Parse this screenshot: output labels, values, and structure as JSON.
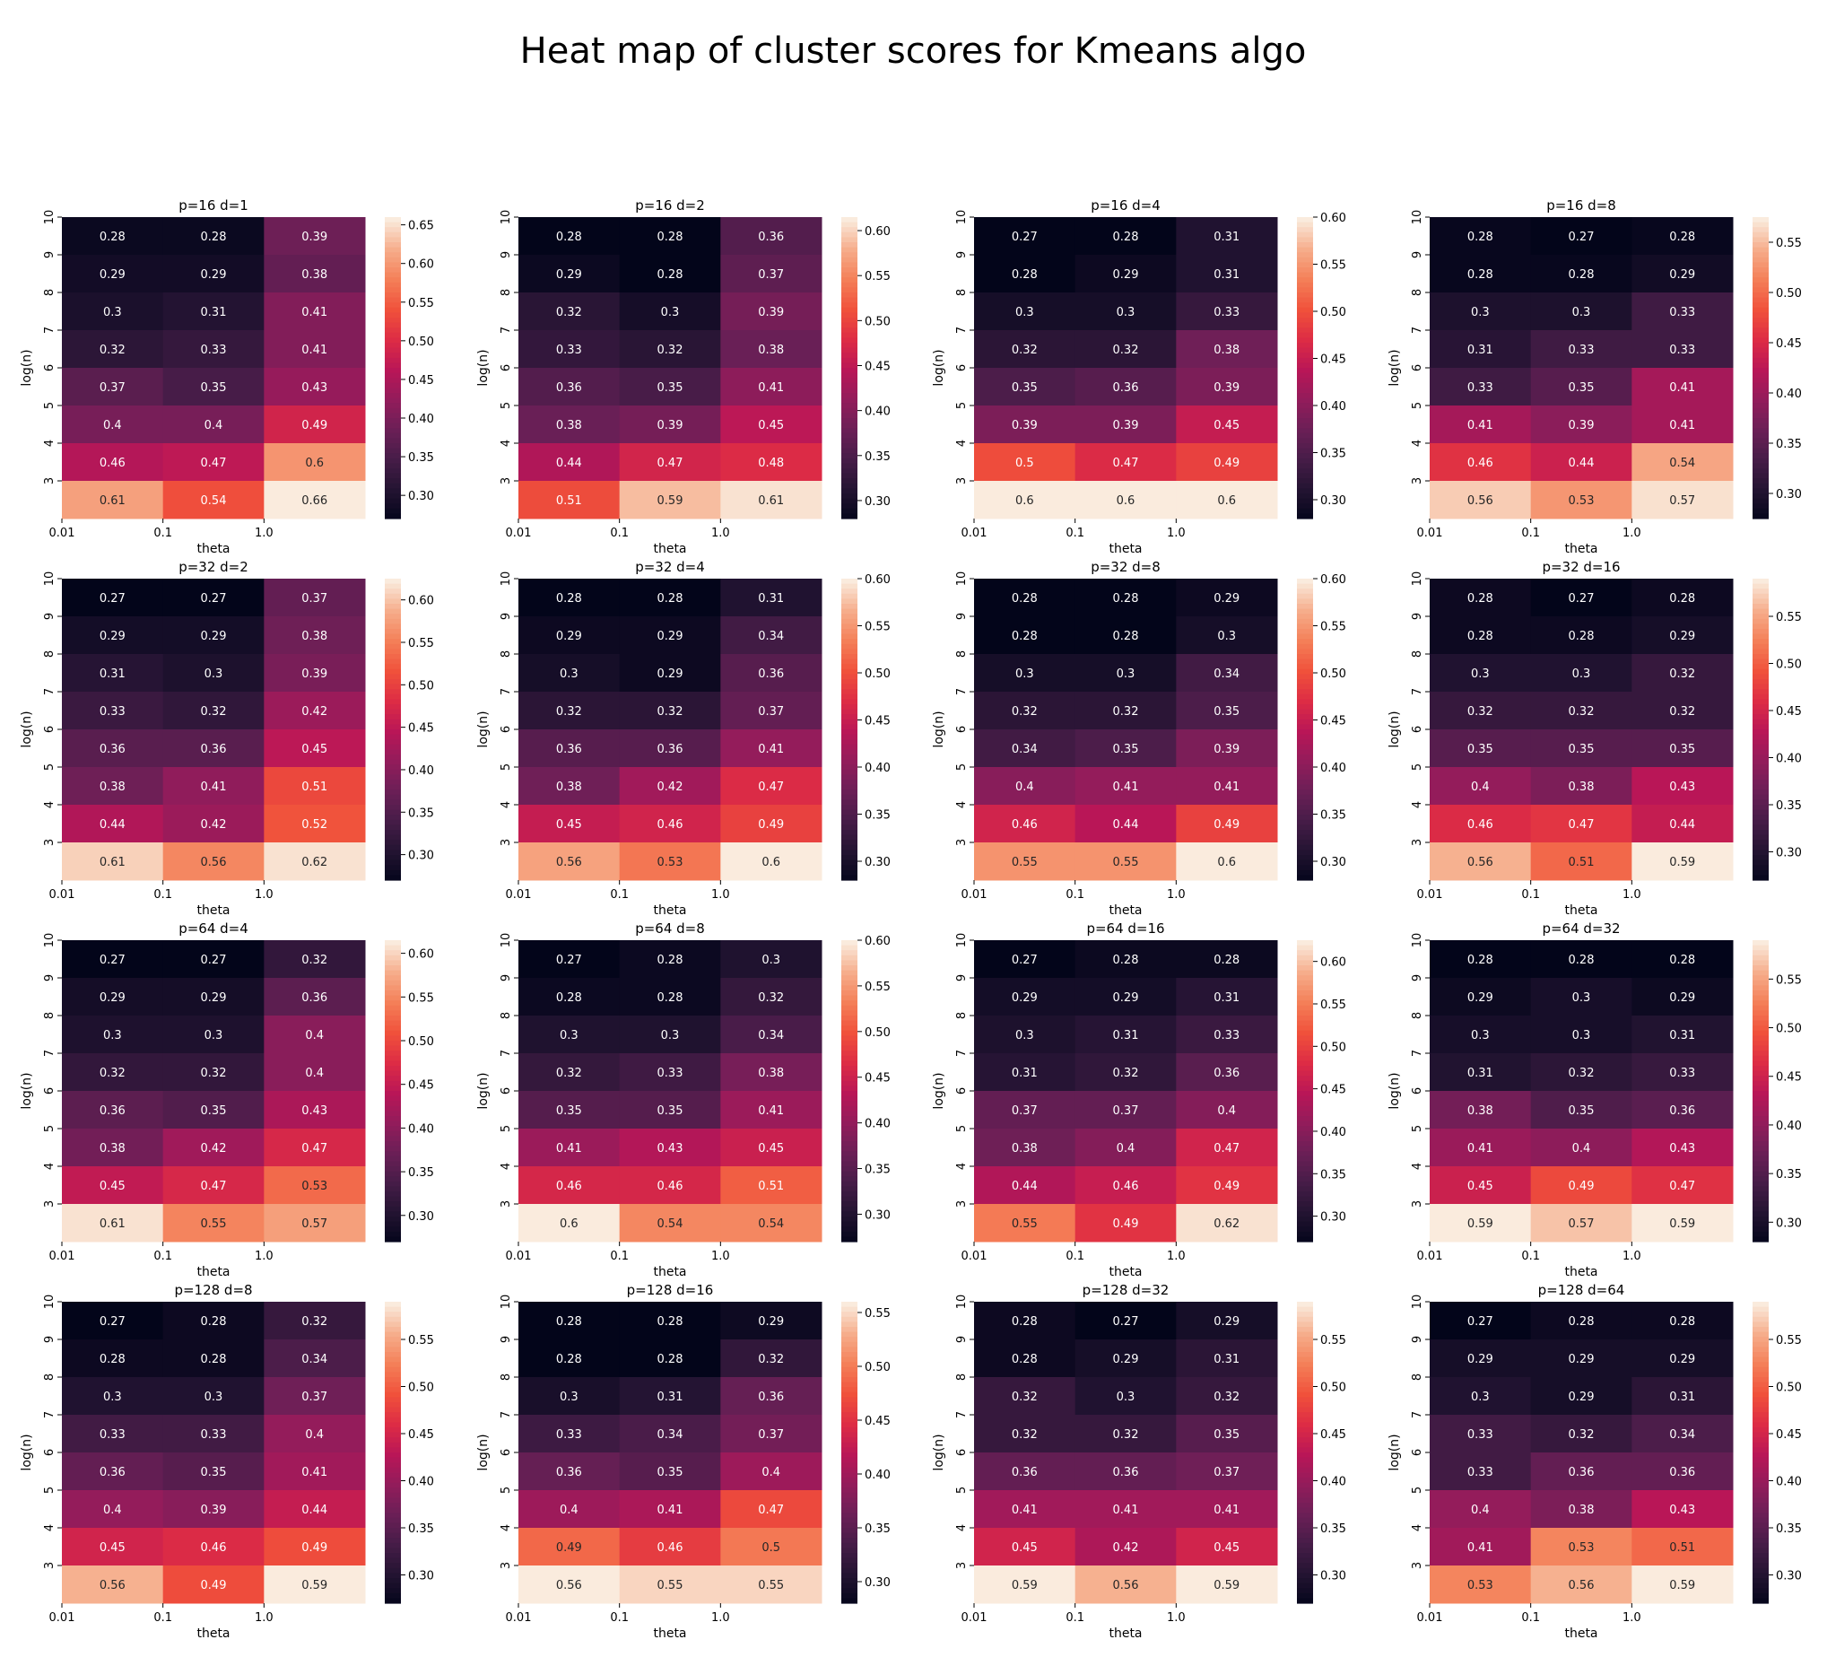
{
  "figure": {
    "title": "Heat map of cluster scores for Kmeans algo"
  },
  "colormap": {
    "name": "rocket",
    "stops": [
      [
        0.0,
        "#03051a"
      ],
      [
        0.1,
        "#221331"
      ],
      [
        0.2,
        "#451c47"
      ],
      [
        0.3,
        "#6a1f56"
      ],
      [
        0.4,
        "#921c5b"
      ],
      [
        0.5,
        "#b91657"
      ],
      [
        0.6,
        "#dd2c45"
      ],
      [
        0.7,
        "#f0513b"
      ],
      [
        0.8,
        "#f47f58"
      ],
      [
        0.9,
        "#f6ad8b"
      ],
      [
        1.0,
        "#faebdd"
      ]
    ]
  },
  "chart_data": [
    {
      "type": "heatmap",
      "title": "p=16 d=1",
      "xlabel": "theta",
      "ylabel": "log(n)",
      "xticklabels": [
        "0.01",
        "0.1",
        "1.0"
      ],
      "yticklabels": [
        "10",
        "9",
        "8",
        "7",
        "6",
        "5",
        "4",
        "3"
      ],
      "values": [
        [
          0.28,
          0.28,
          0.39
        ],
        [
          0.29,
          0.29,
          0.38
        ],
        [
          0.3,
          0.31,
          0.41
        ],
        [
          0.32,
          0.33,
          0.41
        ],
        [
          0.37,
          0.35,
          0.43
        ],
        [
          0.4,
          0.4,
          0.49
        ],
        [
          0.46,
          0.47,
          0.6
        ],
        [
          0.61,
          0.54,
          0.66
        ]
      ],
      "vmin": 0.27,
      "vmax": 0.66,
      "colorbar_ticks": [
        "0.30",
        "0.35",
        "0.40",
        "0.45",
        "0.50",
        "0.55",
        "0.60",
        "0.65"
      ]
    },
    {
      "type": "heatmap",
      "title": "p=16 d=2",
      "xlabel": "theta",
      "ylabel": "log(n)",
      "xticklabels": [
        "0.01",
        "0.1",
        "1.0"
      ],
      "yticklabels": [
        "10",
        "9",
        "8",
        "7",
        "6",
        "5",
        "4",
        "3"
      ],
      "values": [
        [
          0.28,
          0.28,
          0.36
        ],
        [
          0.29,
          0.28,
          0.37
        ],
        [
          0.32,
          0.3,
          0.39
        ],
        [
          0.33,
          0.32,
          0.38
        ],
        [
          0.36,
          0.35,
          0.41
        ],
        [
          0.38,
          0.39,
          0.45
        ],
        [
          0.44,
          0.47,
          0.48
        ],
        [
          0.51,
          0.59,
          0.61
        ]
      ],
      "vmin": 0.28,
      "vmax": 0.615,
      "colorbar_ticks": [
        "0.30",
        "0.35",
        "0.40",
        "0.45",
        "0.50",
        "0.55",
        "0.60"
      ]
    },
    {
      "type": "heatmap",
      "title": "p=16 d=4",
      "xlabel": "theta",
      "ylabel": "log(n)",
      "xticklabels": [
        "0.01",
        "0.1",
        "1.0"
      ],
      "yticklabels": [
        "10",
        "9",
        "8",
        "7",
        "6",
        "5",
        "4",
        "3"
      ],
      "values": [
        [
          0.27,
          0.28,
          0.31
        ],
        [
          0.28,
          0.29,
          0.31
        ],
        [
          0.3,
          0.3,
          0.33
        ],
        [
          0.32,
          0.32,
          0.38
        ],
        [
          0.35,
          0.36,
          0.39
        ],
        [
          0.39,
          0.39,
          0.45
        ],
        [
          0.5,
          0.47,
          0.49
        ],
        [
          0.6,
          0.6,
          0.6
        ]
      ],
      "vmin": 0.28,
      "vmax": 0.6,
      "colorbar_ticks": [
        "0.30",
        "0.35",
        "0.40",
        "0.45",
        "0.50",
        "0.55",
        "0.60"
      ]
    },
    {
      "type": "heatmap",
      "title": "p=16 d=8",
      "xlabel": "theta",
      "ylabel": "log(n)",
      "xticklabels": [
        "0.01",
        "0.1",
        "1.0"
      ],
      "yticklabels": [
        "10",
        "9",
        "8",
        "7",
        "6",
        "5",
        "4",
        "3"
      ],
      "values": [
        [
          0.28,
          0.27,
          0.28
        ],
        [
          0.28,
          0.28,
          0.29
        ],
        [
          0.3,
          0.3,
          0.33
        ],
        [
          0.31,
          0.33,
          0.33
        ],
        [
          0.33,
          0.35,
          0.41
        ],
        [
          0.41,
          0.39,
          0.41
        ],
        [
          0.46,
          0.44,
          0.54
        ],
        [
          0.56,
          0.53,
          0.57
        ]
      ],
      "vmin": 0.275,
      "vmax": 0.575,
      "colorbar_ticks": [
        "0.30",
        "0.35",
        "0.40",
        "0.45",
        "0.50",
        "0.55"
      ]
    },
    {
      "type": "heatmap",
      "title": "p=32 d=2",
      "xlabel": "theta",
      "ylabel": "log(n)",
      "xticklabels": [
        "0.01",
        "0.1",
        "1.0"
      ],
      "yticklabels": [
        "10",
        "9",
        "8",
        "7",
        "6",
        "5",
        "4",
        "3"
      ],
      "values": [
        [
          0.27,
          0.27,
          0.37
        ],
        [
          0.29,
          0.29,
          0.38
        ],
        [
          0.31,
          0.3,
          0.39
        ],
        [
          0.33,
          0.32,
          0.42
        ],
        [
          0.36,
          0.36,
          0.45
        ],
        [
          0.38,
          0.41,
          0.51
        ],
        [
          0.44,
          0.42,
          0.52
        ],
        [
          0.61,
          0.56,
          0.62
        ]
      ],
      "vmin": 0.27,
      "vmax": 0.625,
      "colorbar_ticks": [
        "0.30",
        "0.35",
        "0.40",
        "0.45",
        "0.50",
        "0.55",
        "0.60"
      ]
    },
    {
      "type": "heatmap",
      "title": "p=32 d=4",
      "xlabel": "theta",
      "ylabel": "log(n)",
      "xticklabels": [
        "0.01",
        "0.1",
        "1.0"
      ],
      "yticklabels": [
        "10",
        "9",
        "8",
        "7",
        "6",
        "5",
        "4",
        "3"
      ],
      "values": [
        [
          0.28,
          0.28,
          0.31
        ],
        [
          0.29,
          0.29,
          0.34
        ],
        [
          0.3,
          0.29,
          0.36
        ],
        [
          0.32,
          0.32,
          0.37
        ],
        [
          0.36,
          0.36,
          0.41
        ],
        [
          0.38,
          0.42,
          0.47
        ],
        [
          0.45,
          0.46,
          0.49
        ],
        [
          0.56,
          0.53,
          0.6
        ]
      ],
      "vmin": 0.28,
      "vmax": 0.6,
      "colorbar_ticks": [
        "0.30",
        "0.35",
        "0.40",
        "0.45",
        "0.50",
        "0.55",
        "0.60"
      ]
    },
    {
      "type": "heatmap",
      "title": "p=32 d=8",
      "xlabel": "theta",
      "ylabel": "log(n)",
      "xticklabels": [
        "0.01",
        "0.1",
        "1.0"
      ],
      "yticklabels": [
        "10",
        "9",
        "8",
        "7",
        "6",
        "5",
        "4",
        "3"
      ],
      "values": [
        [
          0.28,
          0.28,
          0.29
        ],
        [
          0.28,
          0.28,
          0.3
        ],
        [
          0.3,
          0.3,
          0.34
        ],
        [
          0.32,
          0.32,
          0.35
        ],
        [
          0.34,
          0.35,
          0.39
        ],
        [
          0.4,
          0.41,
          0.41
        ],
        [
          0.46,
          0.44,
          0.49
        ],
        [
          0.55,
          0.55,
          0.6
        ]
      ],
      "vmin": 0.28,
      "vmax": 0.6,
      "colorbar_ticks": [
        "0.30",
        "0.35",
        "0.40",
        "0.45",
        "0.50",
        "0.55",
        "0.60"
      ]
    },
    {
      "type": "heatmap",
      "title": "p=32 d=16",
      "xlabel": "theta",
      "ylabel": "log(n)",
      "xticklabels": [
        "0.01",
        "0.1",
        "1.0"
      ],
      "yticklabels": [
        "10",
        "9",
        "8",
        "7",
        "6",
        "5",
        "4",
        "3"
      ],
      "values": [
        [
          0.28,
          0.27,
          0.28
        ],
        [
          0.28,
          0.28,
          0.29
        ],
        [
          0.3,
          0.3,
          0.32
        ],
        [
          0.32,
          0.32,
          0.32
        ],
        [
          0.35,
          0.35,
          0.35
        ],
        [
          0.4,
          0.38,
          0.43
        ],
        [
          0.46,
          0.47,
          0.44
        ],
        [
          0.56,
          0.51,
          0.59
        ]
      ],
      "vmin": 0.27,
      "vmax": 0.59,
      "colorbar_ticks": [
        "0.30",
        "0.35",
        "0.40",
        "0.45",
        "0.50",
        "0.55"
      ]
    },
    {
      "type": "heatmap",
      "title": "p=64 d=4",
      "xlabel": "theta",
      "ylabel": "log(n)",
      "xticklabels": [
        "0.01",
        "0.1",
        "1.0"
      ],
      "yticklabels": [
        "10",
        "9",
        "8",
        "7",
        "6",
        "5",
        "4",
        "3"
      ],
      "values": [
        [
          0.27,
          0.27,
          0.32
        ],
        [
          0.29,
          0.29,
          0.36
        ],
        [
          0.3,
          0.3,
          0.4
        ],
        [
          0.32,
          0.32,
          0.4
        ],
        [
          0.36,
          0.35,
          0.43
        ],
        [
          0.38,
          0.42,
          0.47
        ],
        [
          0.45,
          0.47,
          0.53
        ],
        [
          0.61,
          0.55,
          0.57
        ]
      ],
      "vmin": 0.27,
      "vmax": 0.615,
      "colorbar_ticks": [
        "0.30",
        "0.35",
        "0.40",
        "0.45",
        "0.50",
        "0.55",
        "0.60"
      ]
    },
    {
      "type": "heatmap",
      "title": "p=64 d=8",
      "xlabel": "theta",
      "ylabel": "log(n)",
      "xticklabels": [
        "0.01",
        "0.1",
        "1.0"
      ],
      "yticklabels": [
        "10",
        "9",
        "8",
        "7",
        "6",
        "5",
        "4",
        "3"
      ],
      "values": [
        [
          0.27,
          0.28,
          0.3
        ],
        [
          0.28,
          0.28,
          0.32
        ],
        [
          0.3,
          0.3,
          0.34
        ],
        [
          0.32,
          0.33,
          0.38
        ],
        [
          0.35,
          0.35,
          0.41
        ],
        [
          0.41,
          0.43,
          0.45
        ],
        [
          0.46,
          0.46,
          0.51
        ],
        [
          0.6,
          0.54,
          0.54
        ]
      ],
      "vmin": 0.27,
      "vmax": 0.6,
      "colorbar_ticks": [
        "0.30",
        "0.35",
        "0.40",
        "0.45",
        "0.50",
        "0.55",
        "0.60"
      ]
    },
    {
      "type": "heatmap",
      "title": "p=64 d=16",
      "xlabel": "theta",
      "ylabel": "log(n)",
      "xticklabels": [
        "0.01",
        "0.1",
        "1.0"
      ],
      "yticklabels": [
        "10",
        "9",
        "8",
        "7",
        "6",
        "5",
        "4",
        "3"
      ],
      "values": [
        [
          0.27,
          0.28,
          0.28
        ],
        [
          0.29,
          0.29,
          0.31
        ],
        [
          0.3,
          0.31,
          0.33
        ],
        [
          0.31,
          0.32,
          0.36
        ],
        [
          0.37,
          0.37,
          0.4
        ],
        [
          0.38,
          0.4,
          0.47
        ],
        [
          0.44,
          0.46,
          0.49
        ],
        [
          0.55,
          0.49,
          0.62
        ]
      ],
      "vmin": 0.27,
      "vmax": 0.625,
      "colorbar_ticks": [
        "0.30",
        "0.35",
        "0.40",
        "0.45",
        "0.50",
        "0.55",
        "0.60"
      ]
    },
    {
      "type": "heatmap",
      "title": "p=64 d=32",
      "xlabel": "theta",
      "ylabel": "log(n)",
      "xticklabels": [
        "0.01",
        "0.1",
        "1.0"
      ],
      "yticklabels": [
        "10",
        "9",
        "8",
        "7",
        "6",
        "5",
        "4",
        "3"
      ],
      "values": [
        [
          0.28,
          0.28,
          0.28
        ],
        [
          0.29,
          0.3,
          0.29
        ],
        [
          0.3,
          0.3,
          0.31
        ],
        [
          0.31,
          0.32,
          0.33
        ],
        [
          0.38,
          0.35,
          0.36
        ],
        [
          0.41,
          0.4,
          0.43
        ],
        [
          0.45,
          0.49,
          0.47
        ],
        [
          0.59,
          0.57,
          0.59
        ]
      ],
      "vmin": 0.28,
      "vmax": 0.59,
      "colorbar_ticks": [
        "0.30",
        "0.35",
        "0.40",
        "0.45",
        "0.50",
        "0.55"
      ]
    },
    {
      "type": "heatmap",
      "title": "p=128 d=8",
      "xlabel": "theta",
      "ylabel": "log(n)",
      "xticklabels": [
        "0.01",
        "0.1",
        "1.0"
      ],
      "yticklabels": [
        "10",
        "9",
        "8",
        "7",
        "6",
        "5",
        "4",
        "3"
      ],
      "values": [
        [
          0.27,
          0.28,
          0.32
        ],
        [
          0.28,
          0.28,
          0.34
        ],
        [
          0.3,
          0.3,
          0.37
        ],
        [
          0.33,
          0.33,
          0.4
        ],
        [
          0.36,
          0.35,
          0.41
        ],
        [
          0.4,
          0.39,
          0.44
        ],
        [
          0.45,
          0.46,
          0.49
        ],
        [
          0.56,
          0.49,
          0.59
        ]
      ],
      "vmin": 0.27,
      "vmax": 0.59,
      "colorbar_ticks": [
        "0.30",
        "0.35",
        "0.40",
        "0.45",
        "0.50",
        "0.55"
      ]
    },
    {
      "type": "heatmap",
      "title": "p=128 d=16",
      "xlabel": "theta",
      "ylabel": "log(n)",
      "xticklabels": [
        "0.01",
        "0.1",
        "1.0"
      ],
      "yticklabels": [
        "10",
        "9",
        "8",
        "7",
        "6",
        "5",
        "4",
        "3"
      ],
      "values": [
        [
          0.28,
          0.28,
          0.29
        ],
        [
          0.28,
          0.28,
          0.32
        ],
        [
          0.3,
          0.31,
          0.36
        ],
        [
          0.33,
          0.34,
          0.37
        ],
        [
          0.36,
          0.35,
          0.4
        ],
        [
          0.4,
          0.41,
          0.47
        ],
        [
          0.49,
          0.46,
          0.5
        ],
        [
          0.56,
          0.55,
          0.55
        ]
      ],
      "vmin": 0.28,
      "vmax": 0.56,
      "colorbar_ticks": [
        "0.30",
        "0.35",
        "0.40",
        "0.45",
        "0.50",
        "0.55"
      ]
    },
    {
      "type": "heatmap",
      "title": "p=128 d=32",
      "xlabel": "theta",
      "ylabel": "log(n)",
      "xticklabels": [
        "0.01",
        "0.1",
        "1.0"
      ],
      "yticklabels": [
        "10",
        "9",
        "8",
        "7",
        "6",
        "5",
        "4",
        "3"
      ],
      "values": [
        [
          0.28,
          0.27,
          0.29
        ],
        [
          0.28,
          0.29,
          0.31
        ],
        [
          0.32,
          0.3,
          0.32
        ],
        [
          0.32,
          0.32,
          0.35
        ],
        [
          0.36,
          0.36,
          0.37
        ],
        [
          0.41,
          0.41,
          0.41
        ],
        [
          0.45,
          0.42,
          0.45
        ],
        [
          0.59,
          0.56,
          0.59
        ]
      ],
      "vmin": 0.27,
      "vmax": 0.59,
      "colorbar_ticks": [
        "0.30",
        "0.35",
        "0.40",
        "0.45",
        "0.50",
        "0.55"
      ]
    },
    {
      "type": "heatmap",
      "title": "p=128 d=64",
      "xlabel": "theta",
      "ylabel": "log(n)",
      "xticklabels": [
        "0.01",
        "0.1",
        "1.0"
      ],
      "yticklabels": [
        "10",
        "9",
        "8",
        "7",
        "6",
        "5",
        "4",
        "3"
      ],
      "values": [
        [
          0.27,
          0.28,
          0.28
        ],
        [
          0.29,
          0.29,
          0.29
        ],
        [
          0.3,
          0.29,
          0.31
        ],
        [
          0.33,
          0.32,
          0.34
        ],
        [
          0.33,
          0.36,
          0.36
        ],
        [
          0.4,
          0.38,
          0.43
        ],
        [
          0.41,
          0.53,
          0.51
        ],
        [
          0.53,
          0.56,
          0.59
        ]
      ],
      "vmin": 0.27,
      "vmax": 0.59,
      "colorbar_ticks": [
        "0.30",
        "0.35",
        "0.40",
        "0.45",
        "0.50",
        "0.55"
      ]
    }
  ]
}
